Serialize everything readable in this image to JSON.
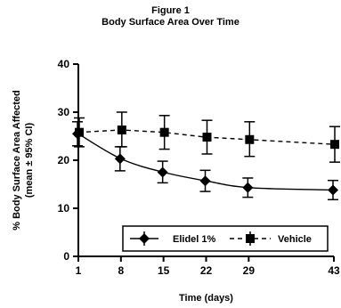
{
  "figure": {
    "label": "Figure 1",
    "title": "Body Surface Area Over Time"
  },
  "chart_data": {
    "type": "line",
    "title": "Body Surface Area Over Time",
    "xlabel": "Time (days)",
    "ylabel_line1": "% Body Surface Area Affected",
    "ylabel_line2": "(mean ± 95% CI)",
    "x": [
      1,
      8,
      15,
      22,
      29,
      43
    ],
    "xticks": [
      "1",
      "8",
      "15",
      "22",
      "29",
      "43"
    ],
    "yticks": [
      0,
      10,
      20,
      30,
      40
    ],
    "xlim": [
      1,
      43
    ],
    "ylim": [
      0,
      40
    ],
    "grid": false,
    "legend_position": "bottom-right",
    "series": [
      {
        "name": "Elidel 1%",
        "marker": "diamond",
        "line": "solid",
        "values": [
          25.5,
          20.3,
          17.5,
          15.7,
          14.3,
          13.8
        ],
        "ci_low": [
          23.0,
          17.8,
          15.3,
          13.5,
          12.3,
          11.8
        ],
        "ci_high": [
          28.0,
          22.8,
          19.8,
          17.9,
          16.3,
          15.8
        ]
      },
      {
        "name": "Vehicle",
        "marker": "square",
        "line": "dashed",
        "values": [
          25.8,
          26.3,
          25.8,
          24.8,
          24.3,
          23.3
        ],
        "ci_low": [
          22.8,
          22.8,
          22.3,
          21.3,
          20.8,
          19.6
        ],
        "ci_high": [
          28.8,
          30.0,
          29.3,
          28.3,
          28.0,
          27.0
        ]
      }
    ]
  }
}
